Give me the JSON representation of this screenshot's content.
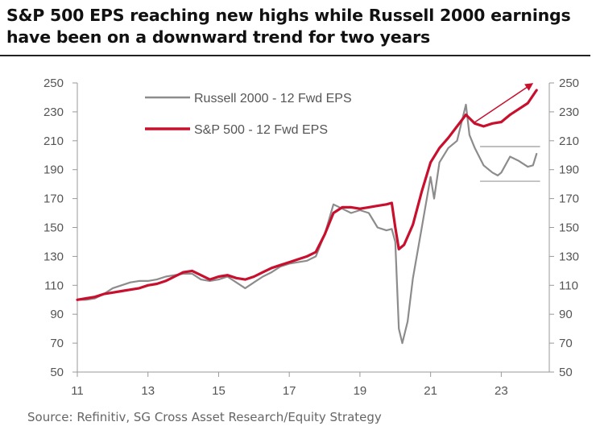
{
  "title_line1": "S&P 500 EPS reaching new highs while Russell 2000 earnings",
  "title_line2": "have been on a downward trend for two years",
  "source": "Source: Refinitiv, SG Cross Asset Research/Equity Strategy",
  "colors": {
    "russell": "#8c8c8c",
    "sp500": "#c8102e",
    "axis": "#999999",
    "annotation": "#c8102e",
    "band": "#999999"
  },
  "chart_data": {
    "type": "line",
    "title": "S&P 500 EPS reaching new highs while Russell 2000 earnings have been on a downward trend for two years",
    "xlabel": "",
    "ylabel": "",
    "xlim": [
      2011,
      2024.2
    ],
    "ylim": [
      50,
      250
    ],
    "x_ticks": [
      2011,
      2013,
      2015,
      2017,
      2019,
      2021,
      2023
    ],
    "x_tick_labels": [
      "11",
      "13",
      "15",
      "17",
      "19",
      "21",
      "23"
    ],
    "y_ticks": [
      50,
      70,
      90,
      110,
      130,
      150,
      170,
      190,
      210,
      230,
      250
    ],
    "y_tick_labels": [
      "50",
      "70",
      "90",
      "110",
      "130",
      "150",
      "170",
      "190",
      "210",
      "230",
      "250"
    ],
    "y2_tick_labels": [
      "50",
      "70",
      "90",
      "110",
      "130",
      "150",
      "170",
      "190",
      "210",
      "230",
      "250"
    ],
    "legend_position": "top-left",
    "series": [
      {
        "name": "Russell 2000 - 12 Fwd EPS",
        "x": [
          2011.0,
          2011.25,
          2011.5,
          2011.75,
          2012.0,
          2012.25,
          2012.5,
          2012.75,
          2013.0,
          2013.25,
          2013.5,
          2013.75,
          2014.0,
          2014.25,
          2014.5,
          2014.75,
          2015.0,
          2015.25,
          2015.5,
          2015.75,
          2016.0,
          2016.25,
          2016.5,
          2016.75,
          2017.0,
          2017.25,
          2017.5,
          2017.75,
          2018.0,
          2018.25,
          2018.5,
          2018.75,
          2019.0,
          2019.25,
          2019.5,
          2019.75,
          2019.9,
          2020.0,
          2020.1,
          2020.2,
          2020.35,
          2020.5,
          2020.75,
          2021.0,
          2021.1,
          2021.25,
          2021.5,
          2021.75,
          2021.9,
          2022.0,
          2022.1,
          2022.25,
          2022.5,
          2022.75,
          2022.9,
          2023.0,
          2023.25,
          2023.5,
          2023.75,
          2023.9,
          2024.0
        ],
        "values": [
          100,
          100,
          101,
          104,
          108,
          110,
          112,
          113,
          113,
          114,
          116,
          117,
          118,
          118,
          114,
          113,
          114,
          116,
          112,
          108,
          112,
          116,
          119,
          123,
          125,
          126,
          127,
          130,
          145,
          166,
          163,
          160,
          162,
          160,
          150,
          148,
          149,
          140,
          80,
          70,
          85,
          115,
          150,
          185,
          170,
          195,
          205,
          210,
          225,
          235,
          214,
          205,
          193,
          188,
          186,
          188,
          199,
          196,
          192,
          193,
          201
        ]
      },
      {
        "name": "S&P 500 - 12 Fwd EPS",
        "x": [
          2011.0,
          2011.25,
          2011.5,
          2011.75,
          2012.0,
          2012.25,
          2012.5,
          2012.75,
          2013.0,
          2013.25,
          2013.5,
          2013.75,
          2014.0,
          2014.25,
          2014.5,
          2014.75,
          2015.0,
          2015.25,
          2015.5,
          2015.75,
          2016.0,
          2016.25,
          2016.5,
          2016.75,
          2017.0,
          2017.25,
          2017.5,
          2017.75,
          2018.0,
          2018.25,
          2018.5,
          2018.75,
          2019.0,
          2019.25,
          2019.5,
          2019.75,
          2019.9,
          2020.0,
          2020.1,
          2020.25,
          2020.5,
          2020.75,
          2021.0,
          2021.25,
          2021.5,
          2021.75,
          2022.0,
          2022.25,
          2022.5,
          2022.75,
          2023.0,
          2023.25,
          2023.5,
          2023.75,
          2024.0
        ],
        "values": [
          100,
          101,
          102,
          104,
          105,
          106,
          107,
          108,
          110,
          111,
          113,
          116,
          119,
          120,
          117,
          114,
          116,
          117,
          115,
          114,
          116,
          119,
          122,
          124,
          126,
          128,
          130,
          133,
          145,
          160,
          164,
          164,
          163,
          164,
          165,
          166,
          167,
          150,
          135,
          138,
          152,
          175,
          195,
          205,
          212,
          220,
          228,
          222,
          220,
          222,
          223,
          228,
          232,
          236,
          245
        ]
      }
    ],
    "annotations": [
      {
        "type": "arrow",
        "from": [
          2022.2,
          222
        ],
        "to": [
          2023.85,
          249
        ]
      },
      {
        "type": "hline",
        "x": [
          2022.4,
          2024.1
        ],
        "y": 206
      },
      {
        "type": "hline",
        "x": [
          2022.4,
          2024.1
        ],
        "y": 182
      }
    ]
  }
}
